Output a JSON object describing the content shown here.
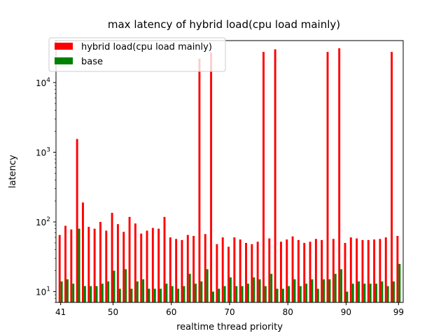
{
  "chart_data": {
    "type": "bar",
    "title": "max latency of hybrid load(cpu load mainly)",
    "xlabel": "realtime thread priority",
    "ylabel": "latency",
    "yscale": "log",
    "ylim": [
      7,
      40000
    ],
    "xlim": [
      40.2,
      99.8
    ],
    "x_ticks": [
      "41",
      "50",
      "60",
      "70",
      "80",
      "90",
      "99"
    ],
    "y_ticks": [
      {
        "value": 10,
        "base": "10",
        "exp": "1"
      },
      {
        "value": 100,
        "base": "10",
        "exp": "2"
      },
      {
        "value": 1000,
        "base": "10",
        "exp": "3"
      },
      {
        "value": 10000,
        "base": "10",
        "exp": "4"
      }
    ],
    "legend_position": "upper-left",
    "grid": false,
    "categories": [
      41,
      42,
      43,
      44,
      45,
      46,
      47,
      48,
      49,
      50,
      51,
      52,
      53,
      54,
      55,
      56,
      57,
      58,
      59,
      60,
      61,
      62,
      63,
      64,
      65,
      66,
      67,
      68,
      69,
      70,
      71,
      72,
      73,
      74,
      75,
      76,
      77,
      78,
      79,
      80,
      81,
      82,
      83,
      84,
      85,
      86,
      87,
      88,
      89,
      90,
      91,
      92,
      93,
      94,
      95,
      96,
      97,
      98,
      99
    ],
    "series": [
      {
        "name": "hybrid load(cpu load mainly)",
        "color": "#ff0000",
        "values": [
          65,
          88,
          78,
          1550,
          190,
          85,
          80,
          100,
          75,
          135,
          93,
          72,
          118,
          95,
          68,
          75,
          82,
          80,
          118,
          60,
          57,
          55,
          65,
          63,
          22000,
          67,
          27000,
          48,
          60,
          44,
          60,
          56,
          50,
          48,
          52,
          27500,
          58,
          30000,
          52,
          56,
          62,
          55,
          50,
          52,
          57,
          55,
          27500,
          57,
          31000,
          50,
          60,
          58,
          55,
          55,
          56,
          57,
          60,
          27500,
          63
        ],
        "raw_note": ""
      },
      {
        "name": "base",
        "color": "#008000",
        "values": [
          14,
          15,
          13,
          80,
          12,
          12,
          12,
          13,
          14,
          20,
          11,
          21,
          11,
          14,
          15,
          11,
          11,
          11,
          13,
          12,
          11,
          12,
          18,
          13,
          14,
          21,
          10,
          11,
          12,
          16,
          12,
          12,
          13,
          16,
          15,
          12,
          18,
          11,
          11,
          12,
          15,
          12,
          13,
          15,
          11,
          15,
          15,
          18,
          21,
          10,
          13,
          14,
          13,
          13,
          13,
          14,
          12,
          14,
          25
        ],
        "raw_note": ""
      }
    ]
  }
}
